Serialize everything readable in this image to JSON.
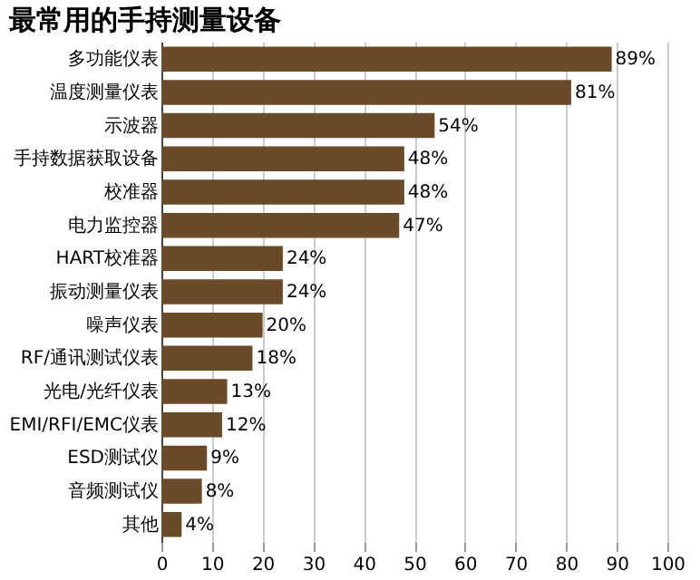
{
  "chart_data": {
    "type": "bar",
    "orientation": "horizontal",
    "title": "最常用的手持测量设备",
    "categories": [
      "多功能仪表",
      "温度测量仪表",
      "示波器",
      "手持数据获取设备",
      "校准器",
      "电力监控器",
      "HART校准器",
      "振动测量仪表",
      "噪声仪表",
      "RF/通讯测试仪表",
      "光电/光纤仪表",
      "EMI/RFI/EMC仪表",
      "ESD测试仪",
      "音频测试仪",
      "其他"
    ],
    "values": [
      89,
      81,
      54,
      48,
      48,
      47,
      24,
      24,
      20,
      18,
      13,
      12,
      9,
      8,
      4
    ],
    "value_labels": [
      "89%",
      "81%",
      "54%",
      "48%",
      "48%",
      "47%",
      "24%",
      "24%",
      "20%",
      "18%",
      "13%",
      "12%",
      "9%",
      "8%",
      "4%"
    ],
    "color": "#6b4a2a",
    "xlim": [
      0,
      100
    ],
    "xticks": [
      0,
      10,
      20,
      30,
      40,
      50,
      60,
      70,
      80,
      90,
      100
    ],
    "grid": "x"
  }
}
